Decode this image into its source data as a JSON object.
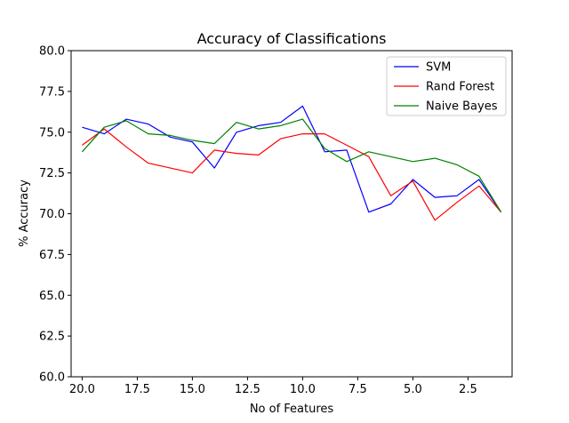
{
  "chart_data": {
    "type": "line",
    "title": "Accuracy of Classifications",
    "xlabel": "No of Features",
    "ylabel": "% Accuracy",
    "x": [
      20,
      19,
      18,
      17,
      16,
      15,
      14,
      13,
      12,
      11,
      10,
      9,
      8,
      7,
      6,
      5,
      4,
      3,
      2,
      1
    ],
    "xlim": [
      20.5,
      0.5
    ],
    "ylim": [
      60.0,
      80.0
    ],
    "x_ticks": [
      "20.0",
      "17.5",
      "15.0",
      "12.5",
      "10.0",
      "7.5",
      "5.0",
      "2.5"
    ],
    "y_ticks": [
      "60.0",
      "62.5",
      "65.0",
      "67.5",
      "70.0",
      "72.5",
      "75.0",
      "77.5",
      "80.0"
    ],
    "x_inverted": true,
    "grid": false,
    "legend_position": "top-right",
    "series": [
      {
        "name": "SVM",
        "color": "#0000ff",
        "values": [
          75.3,
          74.9,
          75.8,
          75.5,
          74.7,
          74.4,
          72.8,
          75.0,
          75.4,
          75.6,
          76.6,
          73.8,
          73.9,
          70.1,
          70.6,
          72.1,
          71.0,
          71.1,
          72.1,
          70.1
        ]
      },
      {
        "name": "Rand Forest",
        "color": "#ff0000",
        "values": [
          74.2,
          75.2,
          74.1,
          73.1,
          72.8,
          72.5,
          73.9,
          73.7,
          73.6,
          74.6,
          74.9,
          74.9,
          74.2,
          73.5,
          71.1,
          72.0,
          69.6,
          70.7,
          71.7,
          70.1
        ]
      },
      {
        "name": "Naive Bayes",
        "color": "#008000",
        "values": [
          73.8,
          75.3,
          75.7,
          74.9,
          74.8,
          74.5,
          74.3,
          75.6,
          75.2,
          75.4,
          75.8,
          74.0,
          73.2,
          73.8,
          73.5,
          73.2,
          73.4,
          73.0,
          72.3,
          70.1
        ]
      }
    ]
  }
}
